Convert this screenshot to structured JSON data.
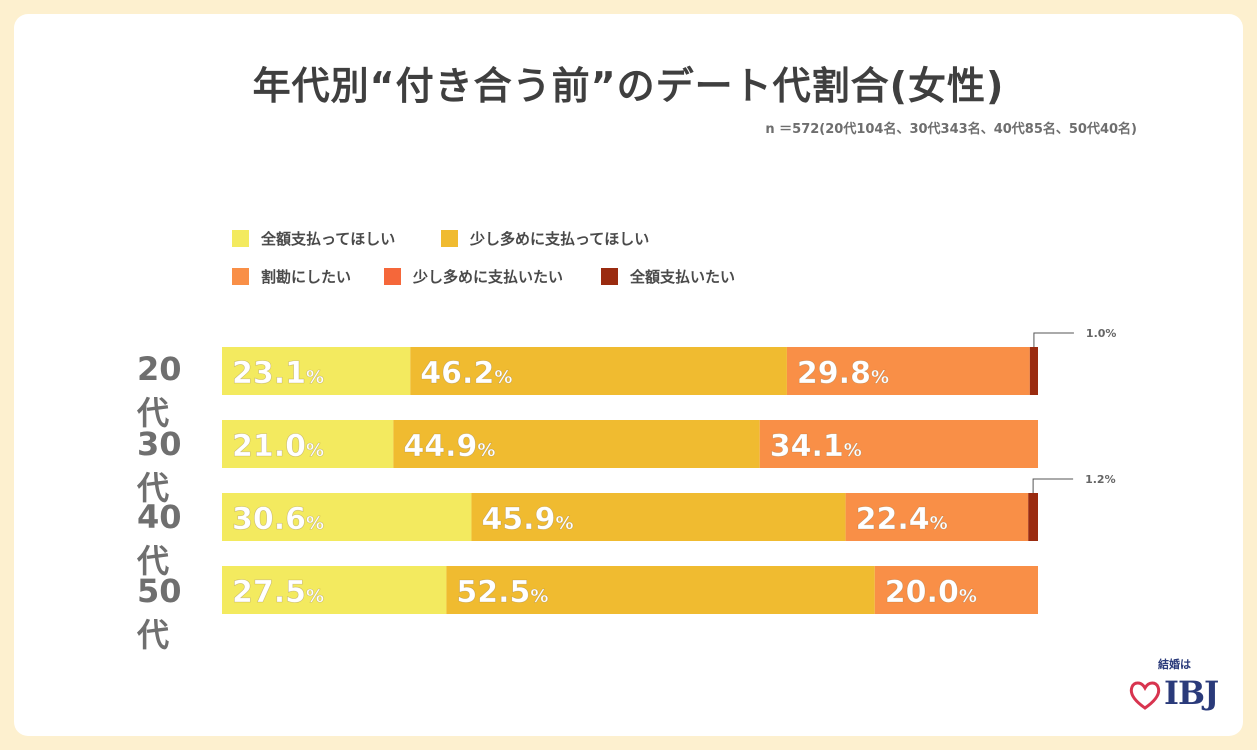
{
  "chart_data": {
    "type": "bar",
    "orientation": "horizontal",
    "stacked": true,
    "title": "年代別“付き合う前”のデート代割合(女性)",
    "subtitle": "n ＝572(20代104名、30代343名、40代85名、50代40名)",
    "categories": [
      "20代",
      "30代",
      "40代",
      "50代"
    ],
    "unit": "%",
    "legend_position": "top-left",
    "series": [
      {
        "name": "全額支払ってほしい",
        "color": "#f3ea5f",
        "values": [
          23.1,
          21.0,
          30.6,
          27.5
        ]
      },
      {
        "name": "少し多めに支払ってほしい",
        "color": "#f0bb30",
        "values": [
          46.2,
          44.9,
          45.9,
          52.5
        ]
      },
      {
        "name": "割勘にしたい",
        "color": "#f98f47",
        "values": [
          29.8,
          34.1,
          22.4,
          20.0
        ]
      },
      {
        "name": "少し多めに支払いたい",
        "color": "#f5673a",
        "values": [
          0,
          0,
          0,
          0
        ]
      },
      {
        "name": "全額支払いたい",
        "color": "#9a2b10",
        "values": [
          1.0,
          0,
          1.2,
          0
        ]
      }
    ],
    "labels": [
      [
        "23.1",
        "46.2",
        "29.8",
        "",
        "1.0%"
      ],
      [
        "21.0",
        "44.9",
        "34.1",
        "",
        ""
      ],
      [
        "30.6",
        "45.9",
        "22.4",
        "",
        "1.2%"
      ],
      [
        "27.5",
        "52.5",
        "20.0",
        "",
        ""
      ]
    ]
  },
  "brand": {
    "tagline": "結婚は",
    "name": "IBJ"
  }
}
